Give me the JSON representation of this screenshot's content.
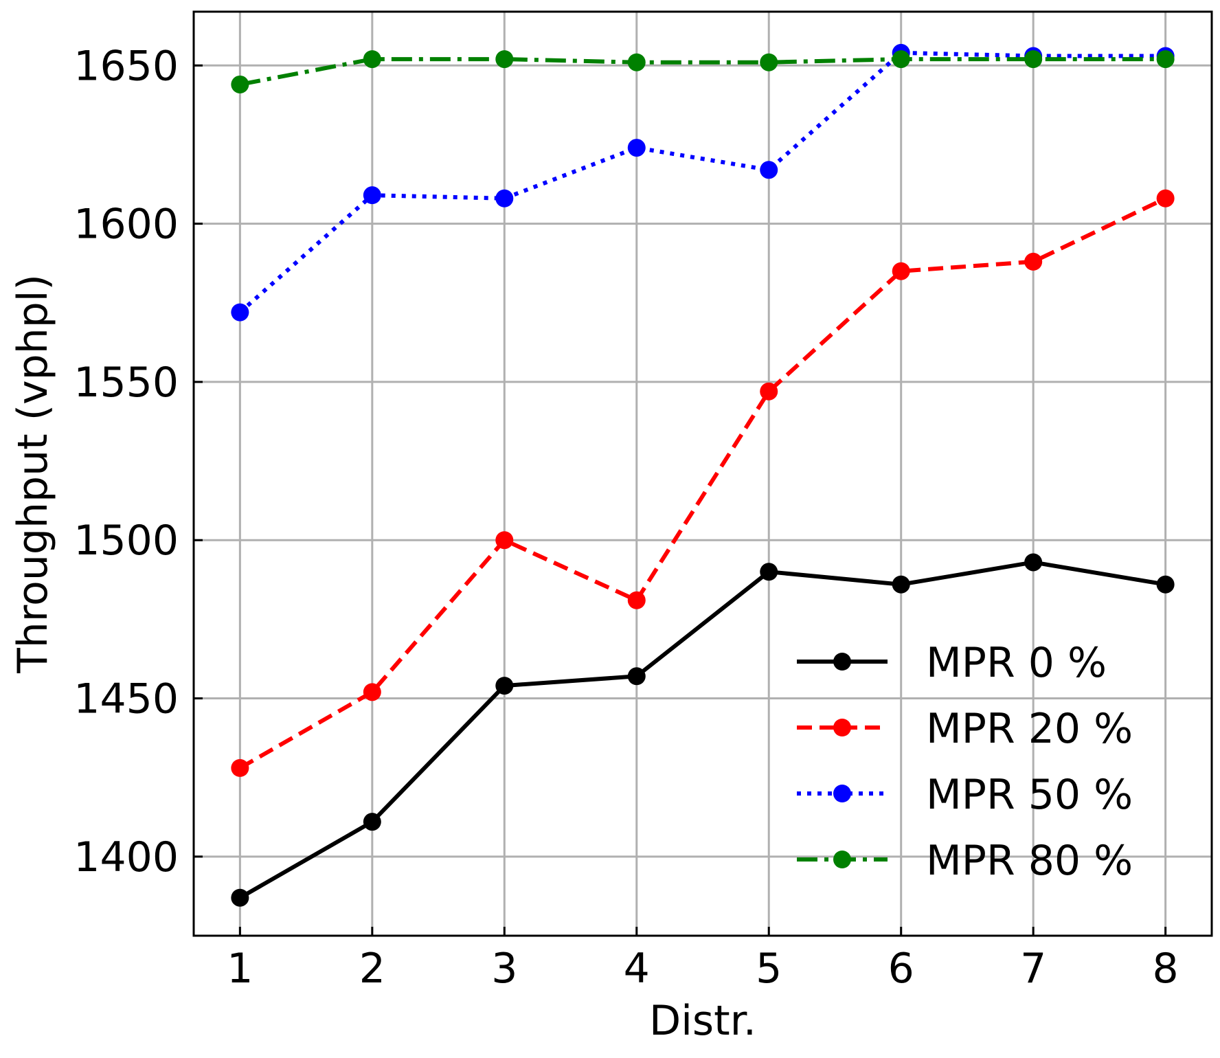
{
  "chart_data": {
    "type": "line",
    "title": "",
    "xlabel": "Distr.",
    "ylabel": "Throughput (vphpl)",
    "x": [
      1,
      2,
      3,
      4,
      5,
      6,
      7,
      8
    ],
    "xticks": [
      "1",
      "2",
      "3",
      "4",
      "5",
      "6",
      "7",
      "8"
    ],
    "xlim": [
      0.65,
      8.35
    ],
    "yticks": [
      "1400",
      "1450",
      "1500",
      "1550",
      "1600",
      "1650"
    ],
    "ylim": [
      1375,
      1667
    ],
    "grid": true,
    "legend_position": "lower-right",
    "series": [
      {
        "name": "MPR 0 %",
        "color": "#000000",
        "style": "solid",
        "values": [
          1387,
          1411,
          1454,
          1457,
          1490,
          1486,
          1493,
          1486
        ]
      },
      {
        "name": "MPR 20 %",
        "color": "#ff0000",
        "style": "dashed",
        "values": [
          1428,
          1452,
          1500,
          1481,
          1547,
          1585,
          1588,
          1608
        ]
      },
      {
        "name": "MPR 50 %",
        "color": "#0000ff",
        "style": "dotted",
        "values": [
          1572,
          1609,
          1608,
          1624,
          1617,
          1654,
          1653,
          1653
        ]
      },
      {
        "name": "MPR 80 %",
        "color": "#008000",
        "style": "dashdot",
        "values": [
          1644,
          1652,
          1652,
          1651,
          1651,
          1652,
          1652,
          1652
        ]
      }
    ]
  }
}
